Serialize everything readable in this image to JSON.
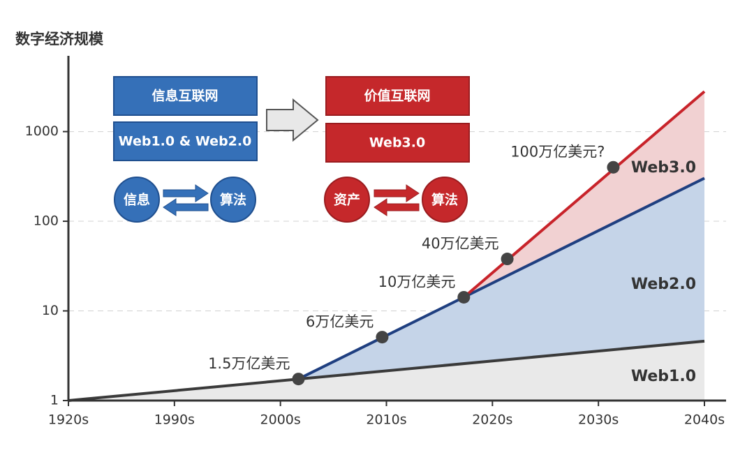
{
  "chart_data": {
    "type": "area",
    "y_label": "数字经济规模",
    "log_y": true,
    "grid": true,
    "xlim": [
      0,
      6
    ],
    "xticks": [
      {
        "value": 0,
        "label": "1920s"
      },
      {
        "value": 1,
        "label": "1990s"
      },
      {
        "value": 2,
        "label": "2000s"
      },
      {
        "value": 3,
        "label": "2010s"
      },
      {
        "value": 4,
        "label": "2020s"
      },
      {
        "value": 5,
        "label": "2030s"
      },
      {
        "value": 6,
        "label": "2040s"
      }
    ],
    "ylim": [
      1,
      7000
    ],
    "yticks": [
      1,
      10,
      100,
      1000
    ],
    "series": [
      {
        "name": "Web1.0",
        "color": "#3a3a3a",
        "fill": "#e9e9e9",
        "x": [
          0,
          6
        ],
        "values": [
          1,
          4.6
        ]
      },
      {
        "name": "Web2.0",
        "color": "#1f3f80",
        "fill": "#c5d4e8",
        "x": [
          2.17,
          6
        ],
        "values": [
          1.74,
          302
        ]
      },
      {
        "name": "Web3.0",
        "color": "#c8232a",
        "fill": "#f1d1d2",
        "x": [
          3.73,
          6
        ],
        "values": [
          14.2,
          2800
        ]
      }
    ],
    "annotations": [
      {
        "text": "1.5万亿美元",
        "x": 2.17,
        "y": 1.74
      },
      {
        "text": "6万亿美元",
        "x": 2.96,
        "y": 5.1
      },
      {
        "text": "10万亿美元",
        "x": 3.73,
        "y": 14.2
      },
      {
        "text": "40万亿美元",
        "x": 4.14,
        "y": 38
      },
      {
        "text": "100万亿美元?",
        "x": 5.14,
        "y": 400
      }
    ]
  },
  "diagram": {
    "left": {
      "title": "信息互联网",
      "subtitle": "Web1.0 & Web2.0",
      "from": "信息",
      "to": "算法"
    },
    "right": {
      "title": "价值互联网",
      "subtitle": "Web3.0",
      "from": "资产",
      "to": "算法"
    }
  }
}
